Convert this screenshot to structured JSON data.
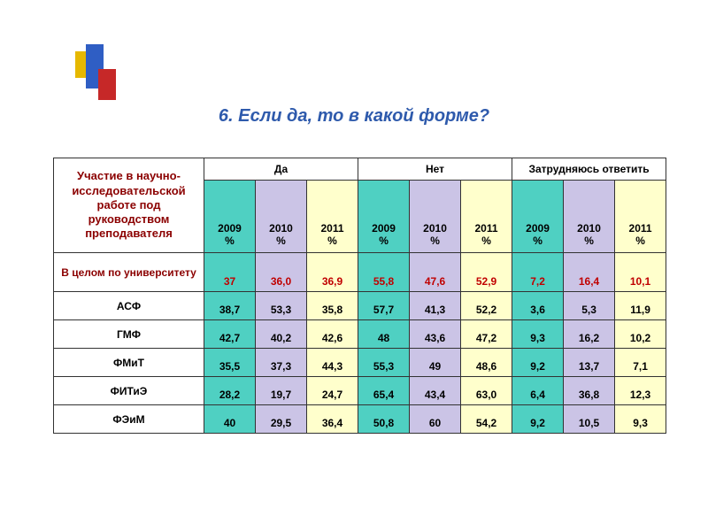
{
  "title": {
    "text": "6. Если да, то в какой форме?",
    "style": "color:#2e5aac"
  },
  "colors": {
    "col_teal": "#4fd0c2",
    "col_lilac": "#cbc4e6",
    "col_lemon": "#ffffcc",
    "red_text": "#c00000",
    "dark_red": "#8b0000",
    "border": "#323232"
  },
  "table": {
    "rowhead_label": "Участие в научно-исследовательской работе под руководством преподавателя",
    "groups": [
      "Да",
      "Нет",
      "Затрудняюсь ответить"
    ],
    "year_labels": [
      "2009 %",
      "2010 %",
      "2011 %"
    ],
    "year_colors": [
      "col_teal",
      "col_lilac",
      "col_lemon"
    ],
    "rows": [
      {
        "label": "В целом по университету",
        "overall": true,
        "cells": [
          "37",
          "36,0",
          "36,9",
          "55,8",
          "47,6",
          "52,9",
          "7,2",
          "16,4",
          "10,1"
        ]
      },
      {
        "label": "АСФ",
        "cells": [
          "38,7",
          "53,3",
          "35,8",
          "57,7",
          "41,3",
          "52,2",
          "3,6",
          "5,3",
          "11,9"
        ]
      },
      {
        "label": "ГМФ",
        "cells": [
          "42,7",
          "40,2",
          "42,6",
          "48",
          "43,6",
          "47,2",
          "9,3",
          "16,2",
          "10,2"
        ]
      },
      {
        "label": "ФМиТ",
        "cells": [
          "35,5",
          "37,3",
          "44,3",
          "55,3",
          "49",
          "48,6",
          "9,2",
          "13,7",
          "7,1"
        ]
      },
      {
        "label": "ФИТиЭ",
        "cells": [
          "28,2",
          "19,7",
          "24,7",
          "65,4",
          "43,4",
          "63,0",
          "6,4",
          "36,8",
          "12,3"
        ]
      },
      {
        "label": "ФЭиМ",
        "cells": [
          "40",
          "29,5",
          "36,4",
          "50,8",
          "60",
          "54,2",
          "9,2",
          "10,5",
          "9,3"
        ]
      }
    ]
  }
}
